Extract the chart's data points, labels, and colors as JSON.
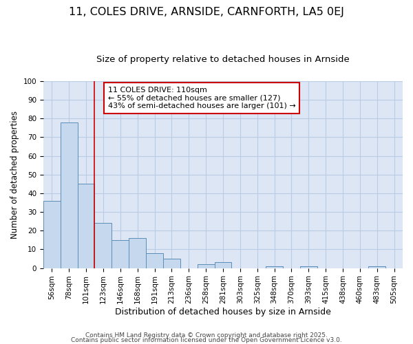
{
  "title1": "11, COLES DRIVE, ARNSIDE, CARNFORTH, LA5 0EJ",
  "title2": "Size of property relative to detached houses in Arnside",
  "xlabel": "Distribution of detached houses by size in Arnside",
  "ylabel": "Number of detached properties",
  "categories": [
    "56sqm",
    "78sqm",
    "101sqm",
    "123sqm",
    "146sqm",
    "168sqm",
    "191sqm",
    "213sqm",
    "236sqm",
    "258sqm",
    "281sqm",
    "303sqm",
    "325sqm",
    "348sqm",
    "370sqm",
    "393sqm",
    "415sqm",
    "438sqm",
    "460sqm",
    "483sqm",
    "505sqm"
  ],
  "values": [
    36,
    78,
    45,
    24,
    15,
    16,
    8,
    5,
    0,
    2,
    3,
    0,
    0,
    1,
    0,
    1,
    0,
    0,
    0,
    1,
    0
  ],
  "bar_color": "#c5d8ee",
  "bar_edge_color": "#5b8db8",
  "red_line_x": 2.5,
  "annotation_text": "11 COLES DRIVE: 110sqm\n← 55% of detached houses are smaller (127)\n43% of semi-detached houses are larger (101) →",
  "annotation_box_color": "#ffffff",
  "annotation_box_edge_color": "#cc0000",
  "ylim": [
    0,
    100
  ],
  "yticks": [
    0,
    10,
    20,
    30,
    40,
    50,
    60,
    70,
    80,
    90,
    100
  ],
  "background_color": "#dce6f5",
  "fig_background_color": "#ffffff",
  "grid_color": "#b8cce4",
  "footer1": "Contains HM Land Registry data © Crown copyright and database right 2025.",
  "footer2": "Contains public sector information licensed under the Open Government Licence v3.0.",
  "title1_fontsize": 11.5,
  "title2_fontsize": 9.5,
  "xlabel_fontsize": 9,
  "ylabel_fontsize": 8.5,
  "tick_fontsize": 7.5,
  "annotation_fontsize": 8,
  "footer_fontsize": 6.5
}
